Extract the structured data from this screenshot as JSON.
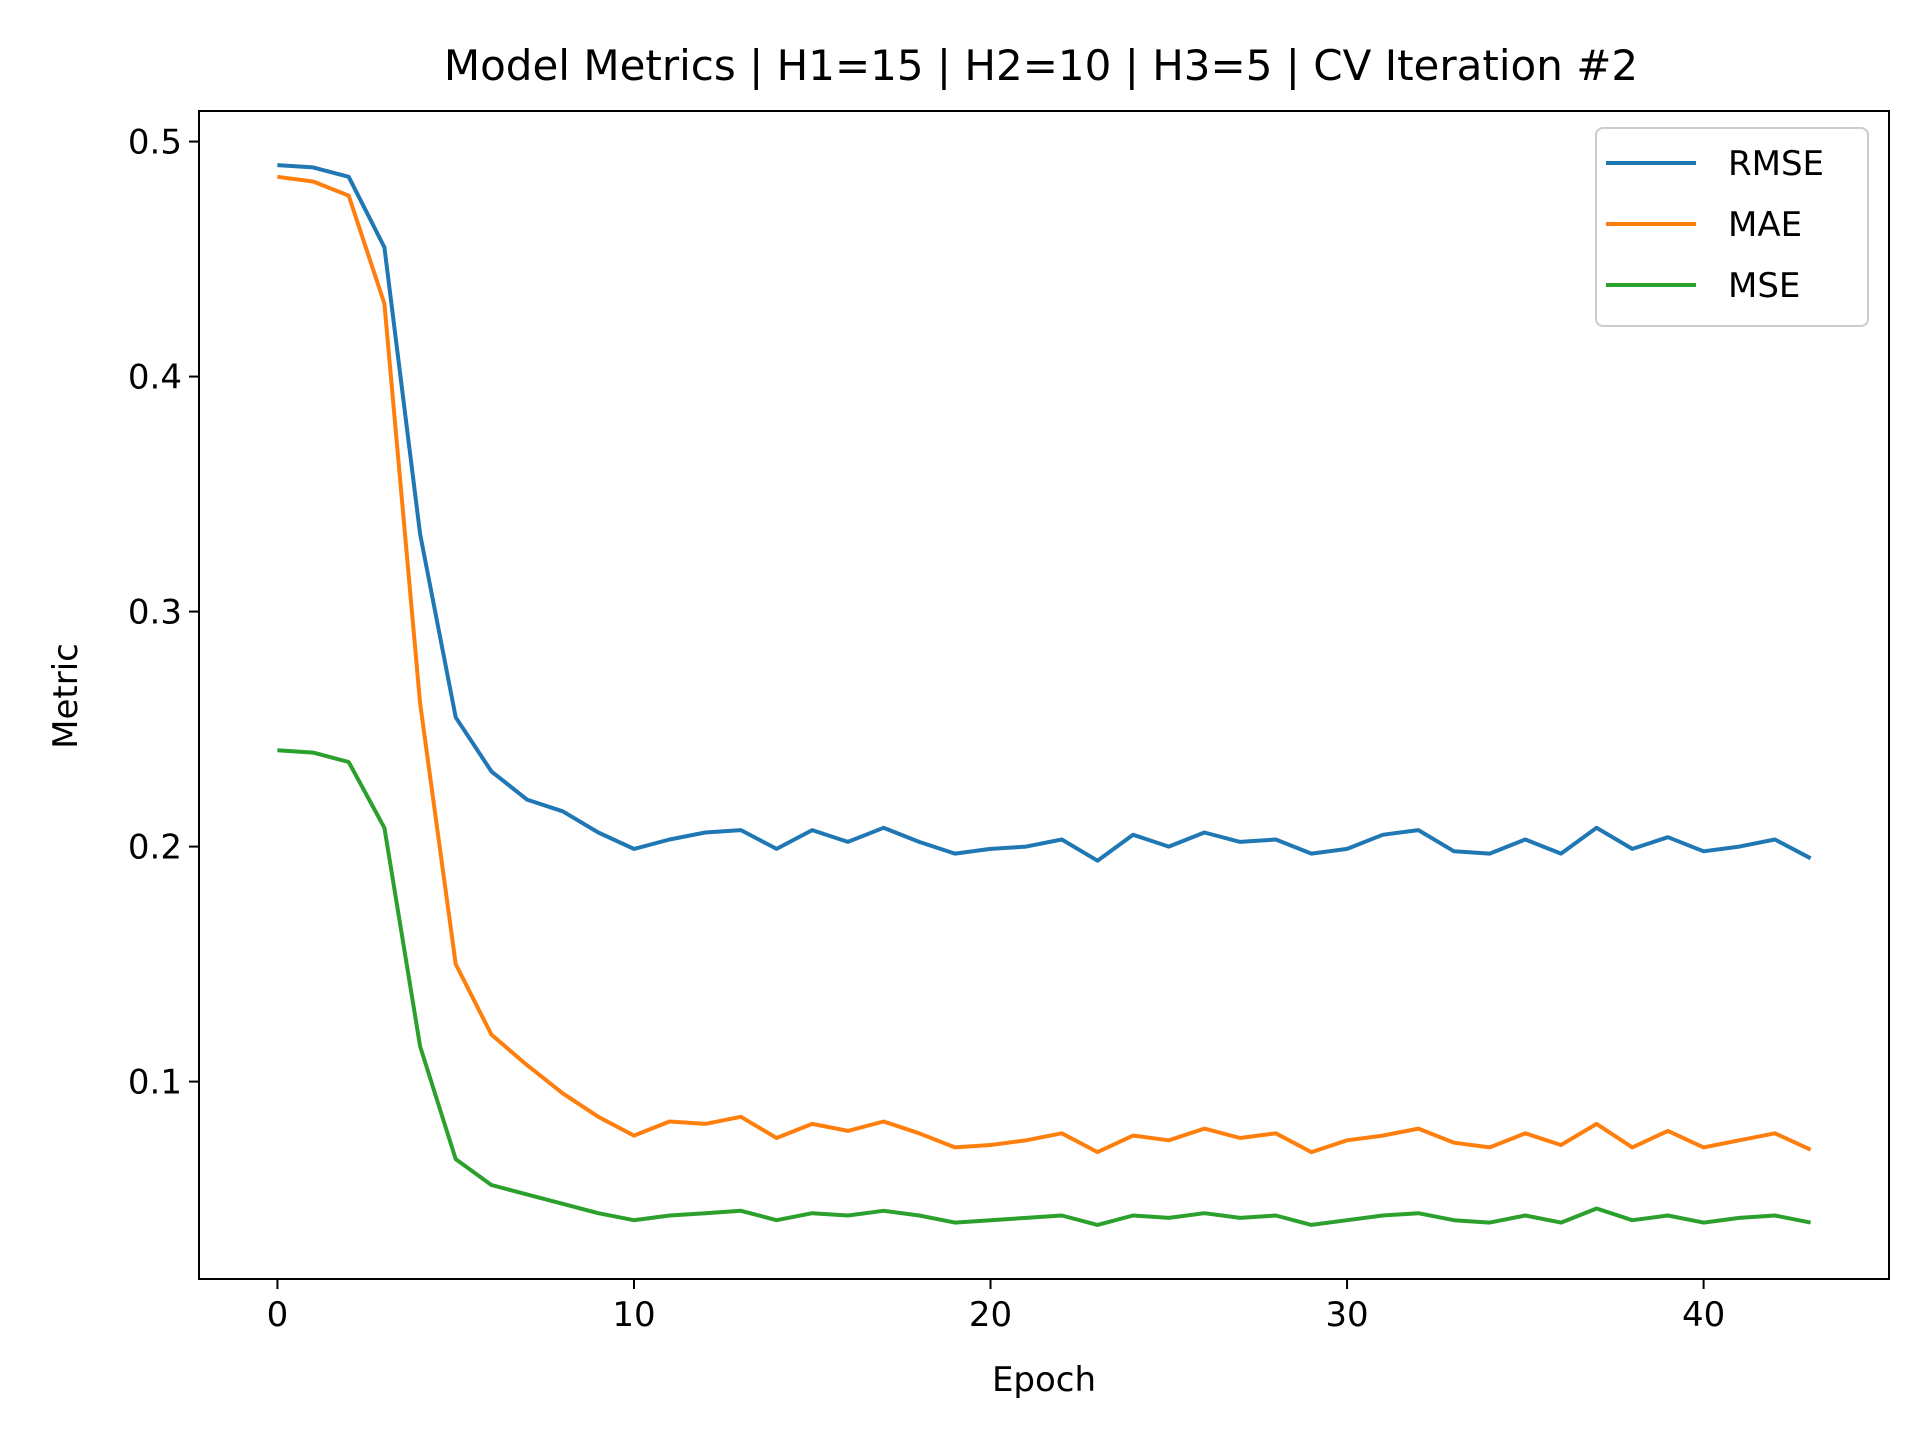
{
  "chart_data": {
    "type": "line",
    "title": "Model Metrics | H1=15 | H2=10 | H3=5 | CV Iteration #2",
    "xlabel": "Epoch",
    "ylabel": "Metric",
    "xlim": [
      -2.2,
      45.2
    ],
    "ylim": [
      0.016,
      0.513
    ],
    "xticks": [
      0,
      10,
      20,
      30,
      40
    ],
    "yticks": [
      0.1,
      0.2,
      0.3,
      0.4,
      0.5
    ],
    "xtick_labels": [
      "0",
      "10",
      "20",
      "30",
      "40"
    ],
    "ytick_labels": [
      "0.1",
      "0.2",
      "0.3",
      "0.4",
      "0.5"
    ],
    "legend_position": "top-right",
    "grid": false,
    "x": [
      0,
      1,
      2,
      3,
      4,
      5,
      6,
      7,
      8,
      9,
      10,
      11,
      12,
      13,
      14,
      15,
      16,
      17,
      18,
      19,
      20,
      21,
      22,
      23,
      24,
      25,
      26,
      27,
      28,
      29,
      30,
      31,
      32,
      33,
      34,
      35,
      36,
      37,
      38,
      39,
      40,
      41,
      42,
      43
    ],
    "series": [
      {
        "name": "RMSE",
        "color": "#1f77b4",
        "values": [
          0.49,
          0.489,
          0.485,
          0.455,
          0.333,
          0.255,
          0.232,
          0.22,
          0.215,
          0.206,
          0.199,
          0.203,
          0.206,
          0.207,
          0.199,
          0.207,
          0.202,
          0.208,
          0.202,
          0.197,
          0.199,
          0.2,
          0.203,
          0.194,
          0.205,
          0.2,
          0.206,
          0.202,
          0.203,
          0.197,
          0.199,
          0.205,
          0.207,
          0.198,
          0.197,
          0.203,
          0.197,
          0.208,
          0.199,
          0.204,
          0.198,
          0.2,
          0.203,
          0.195
        ]
      },
      {
        "name": "MAE",
        "color": "#ff7f0e",
        "values": [
          0.485,
          0.483,
          0.477,
          0.431,
          0.261,
          0.15,
          0.12,
          0.107,
          0.095,
          0.085,
          0.077,
          0.083,
          0.082,
          0.085,
          0.076,
          0.082,
          0.079,
          0.083,
          0.078,
          0.072,
          0.073,
          0.075,
          0.078,
          0.07,
          0.077,
          0.075,
          0.08,
          0.076,
          0.078,
          0.07,
          0.075,
          0.077,
          0.08,
          0.074,
          0.072,
          0.078,
          0.073,
          0.082,
          0.072,
          0.079,
          0.072,
          0.075,
          0.078,
          0.071
        ]
      },
      {
        "name": "MSE",
        "color": "#2ca02c",
        "values": [
          0.241,
          0.24,
          0.236,
          0.208,
          0.115,
          0.067,
          0.056,
          0.052,
          0.048,
          0.044,
          0.041,
          0.043,
          0.044,
          0.045,
          0.041,
          0.044,
          0.043,
          0.045,
          0.043,
          0.04,
          0.041,
          0.042,
          0.043,
          0.039,
          0.043,
          0.042,
          0.044,
          0.042,
          0.043,
          0.039,
          0.041,
          0.043,
          0.044,
          0.041,
          0.04,
          0.043,
          0.04,
          0.046,
          0.041,
          0.043,
          0.04,
          0.042,
          0.043,
          0.04
        ]
      }
    ]
  }
}
